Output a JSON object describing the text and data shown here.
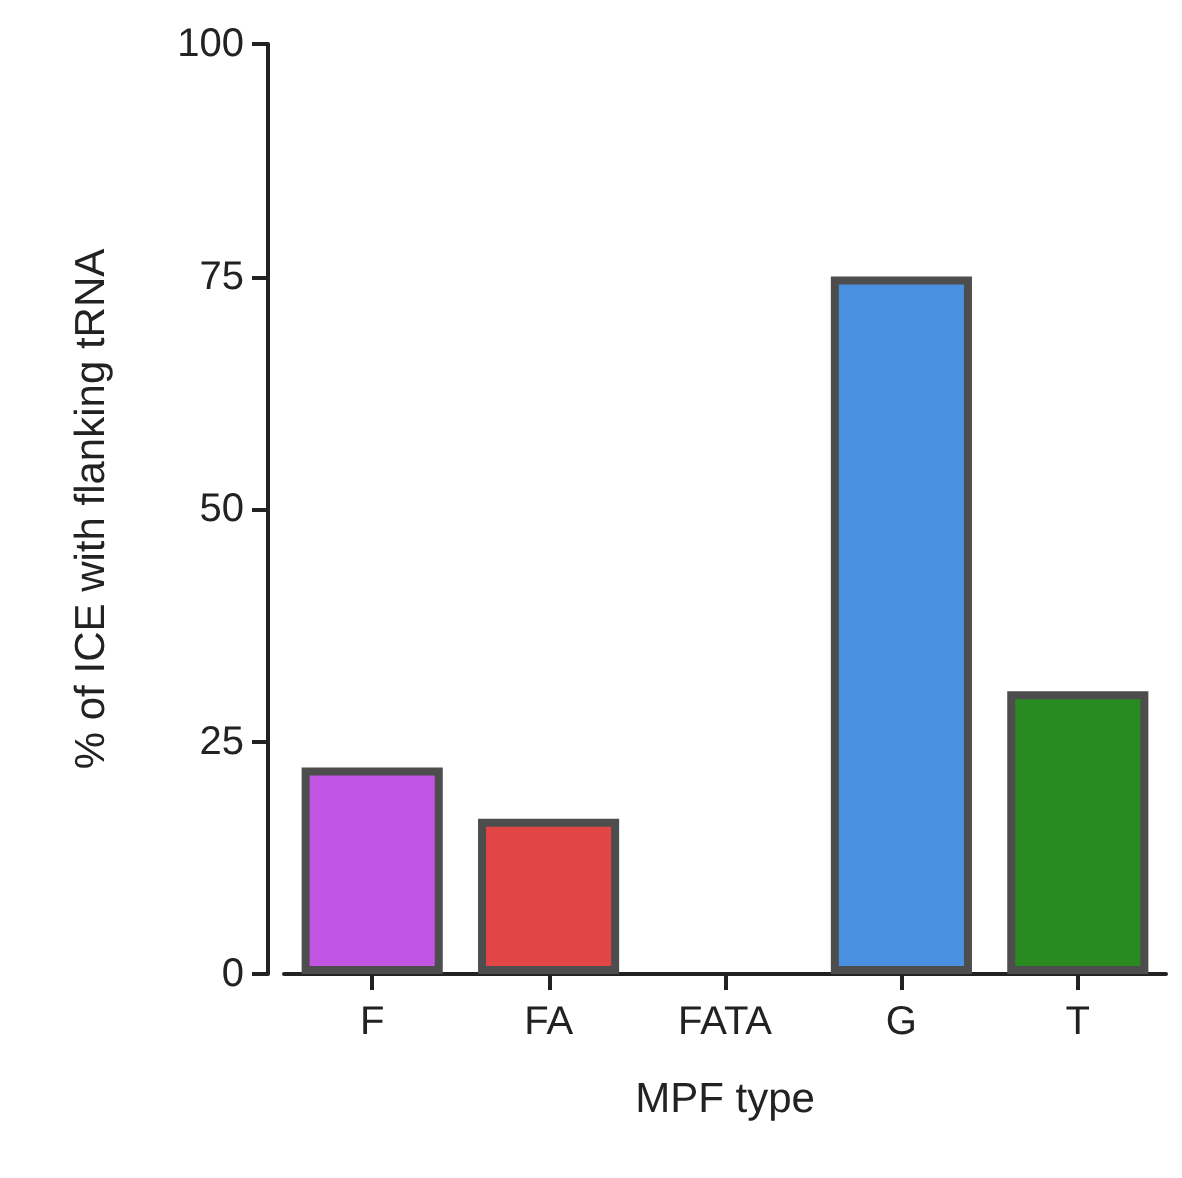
{
  "chart_data": {
    "type": "bar",
    "xlabel": "MPF type",
    "ylabel": "% of ICE with flanking tRNA",
    "categories": [
      "F",
      "FA",
      "FATA",
      "G",
      "T"
    ],
    "values": [
      22.2,
      16.7,
      0,
      75,
      30.4
    ],
    "colors": [
      "#c355e5",
      "#e24545",
      "#5a5a5a",
      "#4a90e0",
      "#2a8a22"
    ],
    "ylim": [
      0,
      100
    ],
    "yticks": [
      0,
      25,
      50,
      75,
      100
    ],
    "grid": false
  }
}
